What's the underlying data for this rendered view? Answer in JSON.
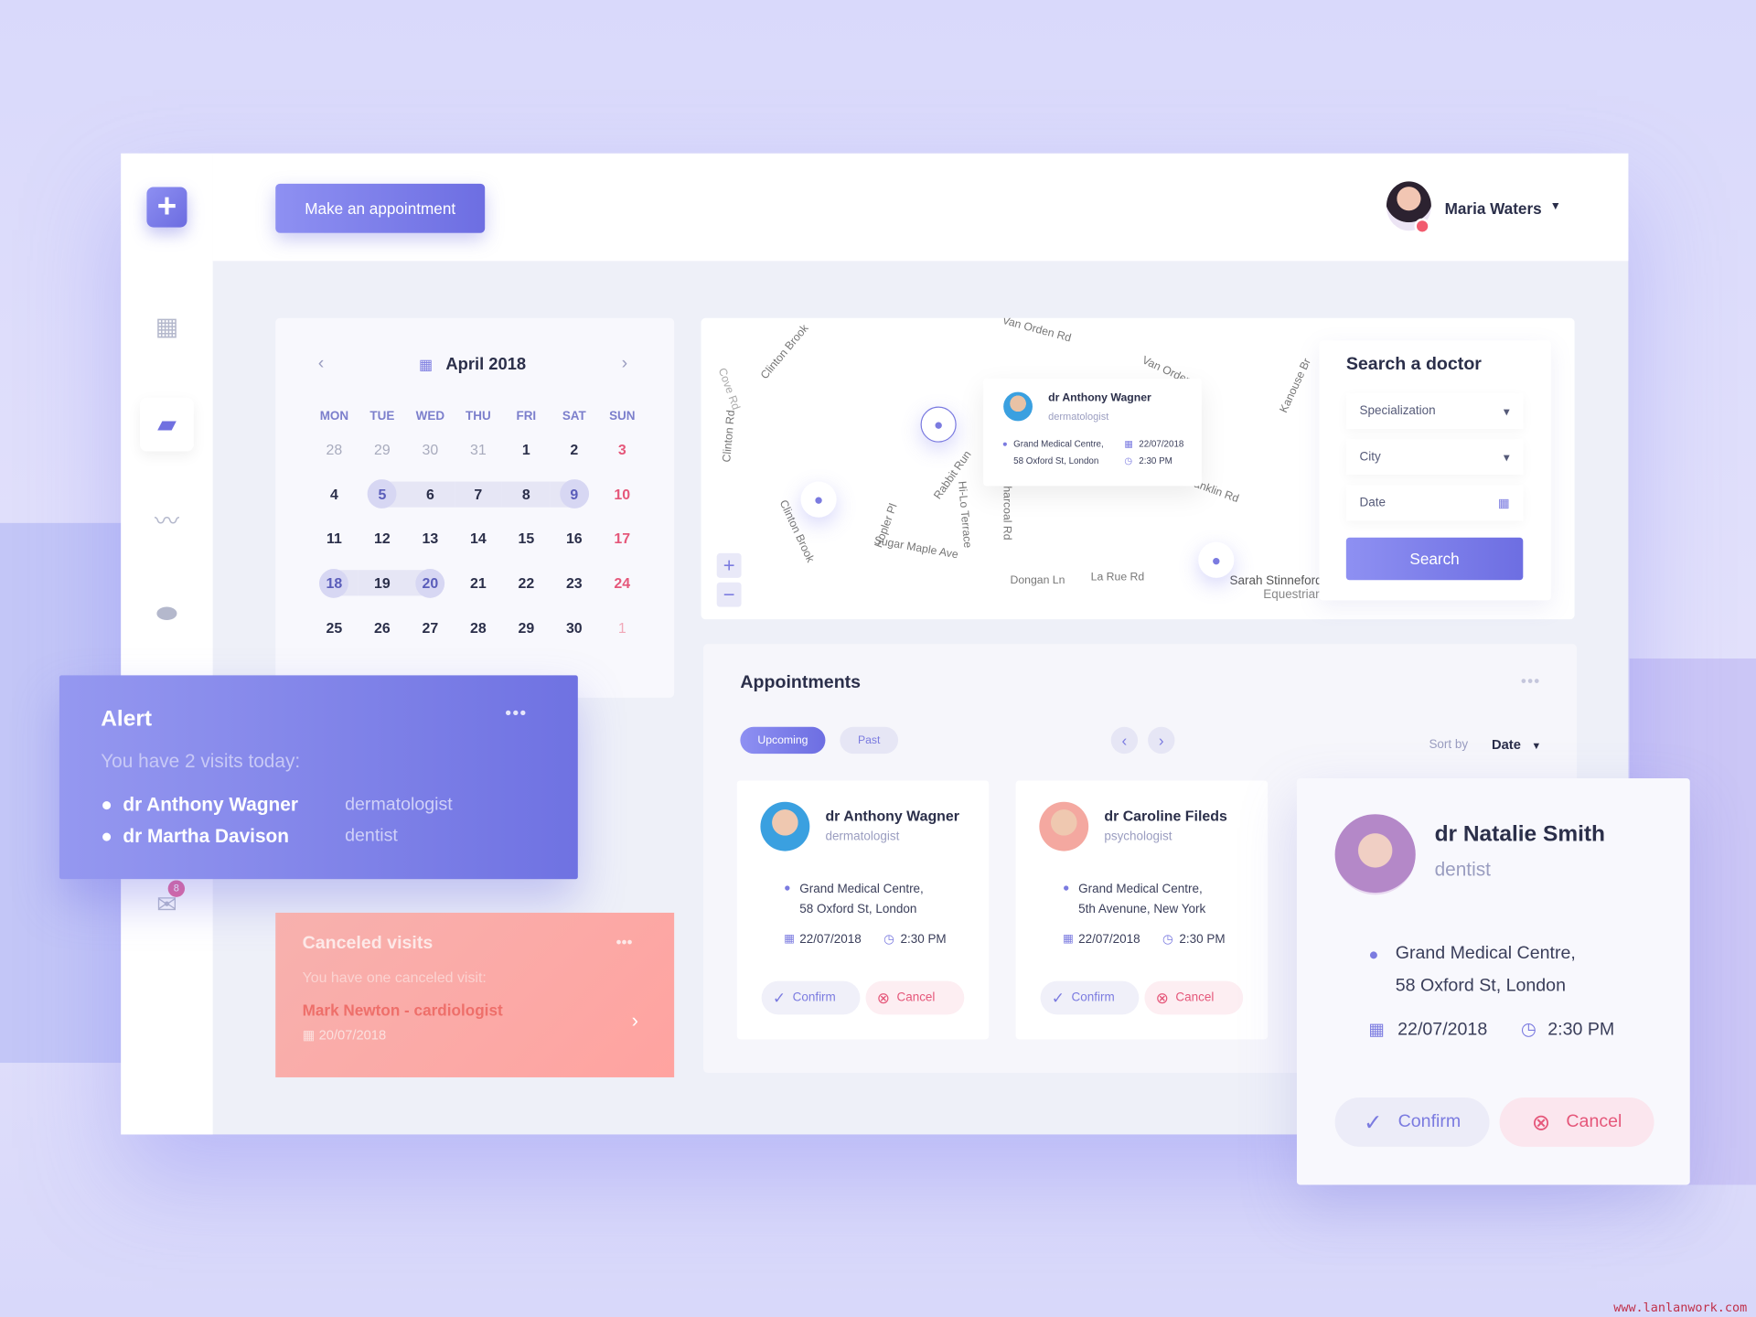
{
  "header": {
    "appointment_button": "Make an appointment",
    "user_name": "Maria Waters"
  },
  "sidebar": {
    "items": [
      {
        "icon": "dashboard-icon"
      },
      {
        "icon": "folder-icon",
        "active": true
      },
      {
        "icon": "pulse-icon"
      },
      {
        "icon": "pills-icon"
      },
      {
        "icon": "mail-icon",
        "badge": "8"
      }
    ]
  },
  "calendar": {
    "month": "April 2018",
    "weekdays": [
      "MON",
      "TUE",
      "WED",
      "THU",
      "FRI",
      "SAT",
      "SUN"
    ],
    "weeks": [
      [
        "28",
        "29",
        "30",
        "31",
        "1",
        "2",
        "3"
      ],
      [
        "4",
        "5",
        "6",
        "7",
        "8",
        "9",
        "10"
      ],
      [
        "11",
        "12",
        "13",
        "14",
        "15",
        "16",
        "17"
      ],
      [
        "18",
        "19",
        "20",
        "21",
        "22",
        "23",
        "24"
      ],
      [
        "25",
        "26",
        "27",
        "28",
        "29",
        "30",
        "1"
      ]
    ]
  },
  "map": {
    "streets": [
      "Van Orden Rd",
      "Clinton Brook",
      "Cove Rd",
      "Clinton Rd",
      "Van Orden",
      "Kanouse Br",
      "Rabbit Run",
      "Hi-Lo Terrace",
      "Charcoal Rd",
      "Franklin Rd",
      "Hopler Pl",
      "Sugar Maple Ave",
      "Clinton Brook",
      "Dongan Ln",
      "La Rue Rd",
      "Sarah Stinneford",
      "Equestrian"
    ],
    "popup": {
      "name": "dr Anthony Wagner",
      "specialty": "dermatologist",
      "address1": "Grand Medical Centre,",
      "address2": "58 Oxford St, London",
      "date": "22/07/2018",
      "time": "2:30 PM"
    },
    "zoom_in": "+",
    "zoom_out": "−"
  },
  "search": {
    "title": "Search a doctor",
    "specialization": "Specialization",
    "city": "City",
    "date": "Date",
    "button": "Search"
  },
  "appointments": {
    "title": "Appointments",
    "tabs": [
      "Upcoming",
      "Past"
    ],
    "active_tab": "Upcoming",
    "sort_label": "Sort by",
    "sort_value": "Date",
    "cards": [
      {
        "name": "dr Anthony Wagner",
        "specialty": "dermatologist",
        "address1": "Grand Medical Centre,",
        "address2": "58 Oxford St, London",
        "date": "22/07/2018",
        "time": "2:30 PM",
        "confirm": "Confirm",
        "cancel": "Cancel"
      },
      {
        "name": "dr Caroline Fileds",
        "specialty": "psychologist",
        "address1": "Grand Medical Centre,",
        "address2": "5th Avenune, New York",
        "date": "22/07/2018",
        "time": "2:30 PM",
        "confirm": "Confirm",
        "cancel": "Cancel"
      },
      {
        "name": "dr Natalie Smith",
        "specialty": "dentist",
        "address1": "Grand Medical Centre,",
        "address2": "58 Oxford St, London",
        "date": "22/07/2018",
        "time": "2:30 PM",
        "confirm": "Confirm",
        "cancel": "Cancel"
      }
    ]
  },
  "alert": {
    "title": "Alert",
    "subtitle": "You have 2 visits today:",
    "items": [
      {
        "name": "dr Anthony Wagner",
        "specialty": "dermatologist"
      },
      {
        "name": "dr Martha Davison",
        "specialty": "dentist"
      }
    ]
  },
  "canceled": {
    "title": "Canceled visits",
    "subtitle": "You have one canceled visit:",
    "visit": "Mark Newton - cardiologist",
    "date": "20/07/2018"
  },
  "watermark": "www.lanlanwork.com",
  "colors": {
    "accent": "#6f70e2",
    "cancel": "#e5577a",
    "background": "#dcdcfa"
  }
}
